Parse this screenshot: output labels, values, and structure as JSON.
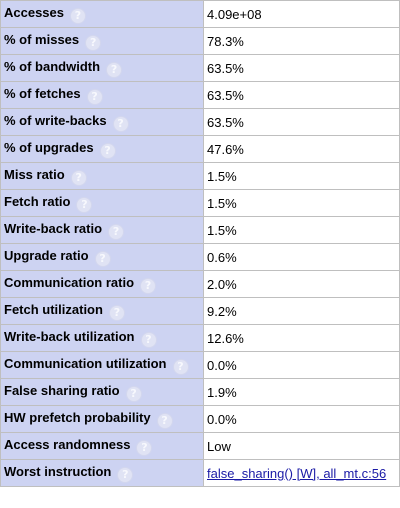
{
  "help_glyph": "?",
  "rows": [
    {
      "label": "Accesses",
      "value": "4.09e+08"
    },
    {
      "label": "% of misses",
      "value": "78.3%"
    },
    {
      "label": "% of bandwidth",
      "value": "63.5%"
    },
    {
      "label": "% of fetches",
      "value": "63.5%"
    },
    {
      "label": "% of write-backs",
      "value": "63.5%"
    },
    {
      "label": "% of upgrades",
      "value": "47.6%"
    },
    {
      "label": "Miss ratio",
      "value": "1.5%"
    },
    {
      "label": "Fetch ratio",
      "value": "1.5%"
    },
    {
      "label": "Write-back ratio",
      "value": "1.5%"
    },
    {
      "label": "Upgrade ratio",
      "value": "0.6%"
    },
    {
      "label": "Communication ratio",
      "value": "2.0%"
    },
    {
      "label": "Fetch utilization",
      "value": "9.2%"
    },
    {
      "label": "Write-back utilization",
      "value": "12.6%"
    },
    {
      "label": "Communication utilization",
      "value": "0.0%"
    },
    {
      "label": "False sharing ratio",
      "value": "1.9%"
    },
    {
      "label": "HW prefetch probability",
      "value": "0.0%"
    },
    {
      "label": "Access randomness",
      "value": "Low"
    },
    {
      "label": "Worst instruction",
      "value": "false_sharing() [W], all_mt.c:56"
    }
  ],
  "colors": {
    "label_bg": "#cdd3f2",
    "value_bg": "#ffffff",
    "border": "#bfbfbf",
    "link": "#1a1aa6"
  }
}
